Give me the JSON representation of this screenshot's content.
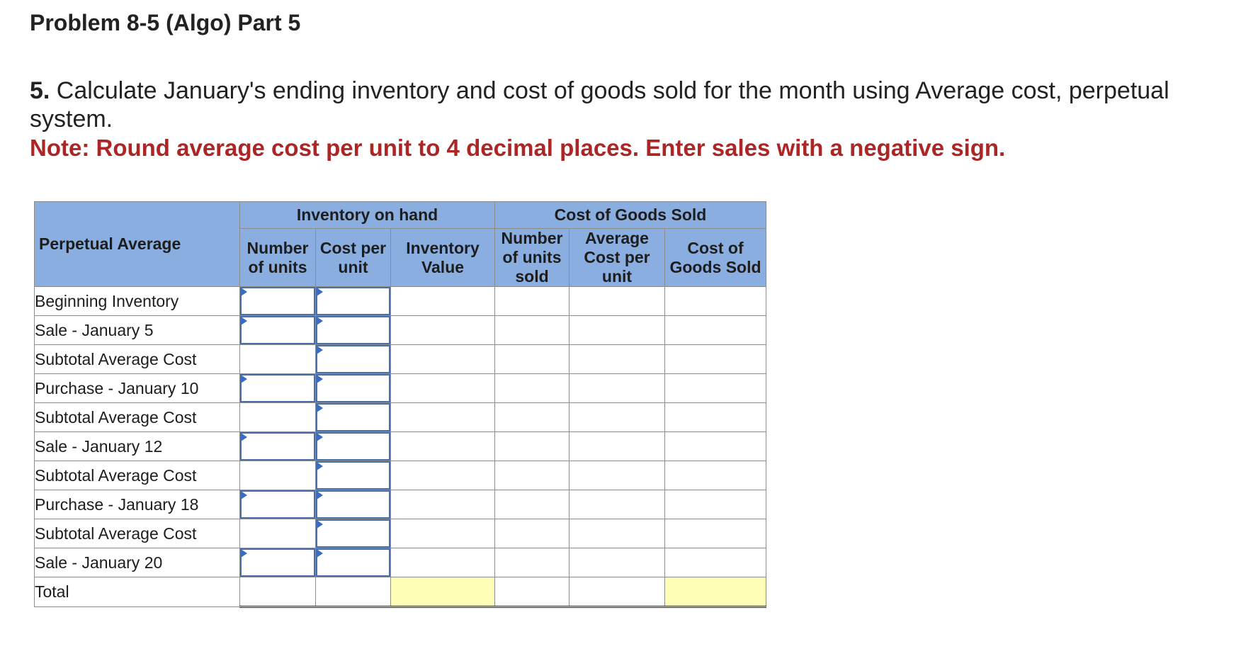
{
  "title": "Problem 8-5 (Algo) Part 5",
  "question": {
    "number": "5.",
    "text": " Calculate January's ending inventory and cost of goods sold for the month using Average cost, perpetual system."
  },
  "note": "Note: Round average cost per unit to 4 decimal places. Enter sales with a negative sign.",
  "table": {
    "corner_label": "Perpetual Average",
    "group_headers": {
      "inventory_on_hand": "Inventory on hand",
      "cogs": "Cost of Goods Sold"
    },
    "columns": {
      "num_units": "Number of units",
      "cost_per_unit": "Cost per unit",
      "inventory_value": "Inventory Value",
      "num_units_sold": "Number of units sold",
      "avg_cost_per_unit": "Average Cost per unit",
      "cogs": "Cost of Goods Sold"
    },
    "rows": [
      "Beginning Inventory",
      "Sale - January 5",
      "Subtotal Average Cost",
      "Purchase - January 10",
      "Subtotal Average Cost",
      "Sale - January 12",
      "Subtotal Average Cost",
      "Purchase - January 18",
      "Subtotal Average Cost",
      "Sale - January 20",
      "Total"
    ],
    "highlight_color": "#ffffb8",
    "header_color": "#8aaee0"
  }
}
